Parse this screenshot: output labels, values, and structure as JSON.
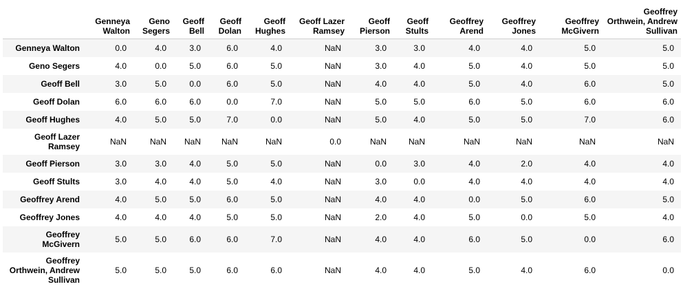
{
  "table": {
    "columns": [
      [
        "Genneya",
        "Walton"
      ],
      [
        "Geno",
        "Segers"
      ],
      [
        "Geoff",
        "Bell"
      ],
      [
        "Geoff",
        "Dolan"
      ],
      [
        "Geoff",
        "Hughes"
      ],
      [
        "Geoff Lazer",
        "Ramsey"
      ],
      [
        "Geoff",
        "Pierson"
      ],
      [
        "Geoff",
        "Stults"
      ],
      [
        "Geoffrey",
        "Arend"
      ],
      [
        "Geoffrey",
        "Jones"
      ],
      [
        "Geoffrey",
        "McGivern"
      ],
      [
        "Geoffrey",
        "Orthwein, Andrew",
        "Sullivan"
      ]
    ],
    "rows": [
      {
        "label": [
          "Genneya Walton"
        ],
        "values": [
          "0.0",
          "4.0",
          "3.0",
          "6.0",
          "4.0",
          "NaN",
          "3.0",
          "3.0",
          "4.0",
          "4.0",
          "5.0",
          "5.0"
        ]
      },
      {
        "label": [
          "Geno Segers"
        ],
        "values": [
          "4.0",
          "0.0",
          "5.0",
          "6.0",
          "5.0",
          "NaN",
          "3.0",
          "4.0",
          "5.0",
          "4.0",
          "5.0",
          "5.0"
        ]
      },
      {
        "label": [
          "Geoff Bell"
        ],
        "values": [
          "3.0",
          "5.0",
          "0.0",
          "6.0",
          "5.0",
          "NaN",
          "4.0",
          "4.0",
          "5.0",
          "4.0",
          "6.0",
          "5.0"
        ]
      },
      {
        "label": [
          "Geoff Dolan"
        ],
        "values": [
          "6.0",
          "6.0",
          "6.0",
          "0.0",
          "7.0",
          "NaN",
          "5.0",
          "5.0",
          "6.0",
          "5.0",
          "6.0",
          "6.0"
        ]
      },
      {
        "label": [
          "Geoff Hughes"
        ],
        "values": [
          "4.0",
          "5.0",
          "5.0",
          "7.0",
          "0.0",
          "NaN",
          "5.0",
          "4.0",
          "5.0",
          "5.0",
          "7.0",
          "6.0"
        ]
      },
      {
        "label": [
          "Geoff Lazer",
          "Ramsey"
        ],
        "values": [
          "NaN",
          "NaN",
          "NaN",
          "NaN",
          "NaN",
          "0.0",
          "NaN",
          "NaN",
          "NaN",
          "NaN",
          "NaN",
          "NaN"
        ]
      },
      {
        "label": [
          "Geoff Pierson"
        ],
        "values": [
          "3.0",
          "3.0",
          "4.0",
          "5.0",
          "5.0",
          "NaN",
          "0.0",
          "3.0",
          "4.0",
          "2.0",
          "4.0",
          "4.0"
        ]
      },
      {
        "label": [
          "Geoff Stults"
        ],
        "values": [
          "3.0",
          "4.0",
          "4.0",
          "5.0",
          "4.0",
          "NaN",
          "3.0",
          "0.0",
          "4.0",
          "4.0",
          "4.0",
          "4.0"
        ]
      },
      {
        "label": [
          "Geoffrey Arend"
        ],
        "values": [
          "4.0",
          "5.0",
          "5.0",
          "6.0",
          "5.0",
          "NaN",
          "4.0",
          "4.0",
          "0.0",
          "5.0",
          "6.0",
          "5.0"
        ]
      },
      {
        "label": [
          "Geoffrey Jones"
        ],
        "values": [
          "4.0",
          "4.0",
          "4.0",
          "5.0",
          "5.0",
          "NaN",
          "2.0",
          "4.0",
          "5.0",
          "0.0",
          "5.0",
          "4.0"
        ]
      },
      {
        "label": [
          "Geoffrey",
          "McGivern"
        ],
        "values": [
          "5.0",
          "5.0",
          "6.0",
          "6.0",
          "7.0",
          "NaN",
          "4.0",
          "4.0",
          "6.0",
          "5.0",
          "0.0",
          "6.0"
        ]
      },
      {
        "label": [
          "Geoffrey",
          "Orthwein, Andrew",
          "Sullivan"
        ],
        "values": [
          "5.0",
          "5.0",
          "5.0",
          "6.0",
          "6.0",
          "NaN",
          "4.0",
          "4.0",
          "5.0",
          "4.0",
          "6.0",
          "0.0"
        ]
      }
    ]
  }
}
